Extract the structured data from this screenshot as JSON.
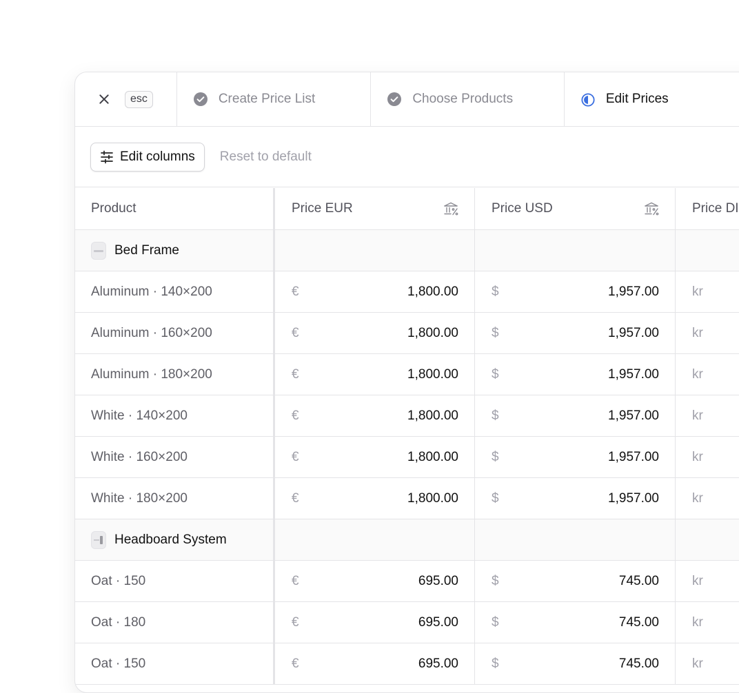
{
  "header": {
    "close_shortcut": "esc",
    "steps": [
      {
        "label": "Create Price List",
        "state": "done"
      },
      {
        "label": "Choose Products",
        "state": "done"
      },
      {
        "label": "Edit Prices",
        "state": "current"
      }
    ]
  },
  "toolbar": {
    "edit_columns_label": "Edit columns",
    "reset_label": "Reset to default"
  },
  "table": {
    "columns": [
      "Product",
      "Price EUR",
      "Price USD",
      "Price DI"
    ],
    "currency_symbols": [
      "€",
      "$",
      "kr"
    ],
    "groups": [
      {
        "name": "Bed Frame",
        "rows": [
          {
            "product": "Aluminum · 140×200",
            "eur": "1,800.00",
            "usd": "1,957.00"
          },
          {
            "product": "Aluminum · 160×200",
            "eur": "1,800.00",
            "usd": "1,957.00"
          },
          {
            "product": "Aluminum · 180×200",
            "eur": "1,800.00",
            "usd": "1,957.00"
          },
          {
            "product": "White · 140×200",
            "eur": "1,800.00",
            "usd": "1,957.00"
          },
          {
            "product": "White · 160×200",
            "eur": "1,800.00",
            "usd": "1,957.00"
          },
          {
            "product": "White · 180×200",
            "eur": "1,800.00",
            "usd": "1,957.00"
          }
        ]
      },
      {
        "name": "Headboard System",
        "rows": [
          {
            "product": "Oat · 150",
            "eur": "695.00",
            "usd": "745.00"
          },
          {
            "product": "Oat · 180",
            "eur": "695.00",
            "usd": "745.00"
          },
          {
            "product": "Oat · 150",
            "eur": "695.00",
            "usd": "745.00"
          }
        ]
      }
    ]
  },
  "colors": {
    "accent": "#3b6fe0",
    "done_icon": "#8a8a92",
    "border": "#e4e4e7"
  }
}
